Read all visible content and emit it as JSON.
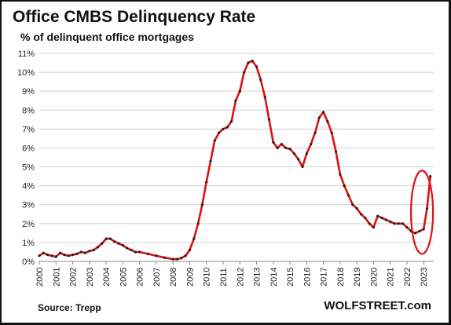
{
  "header": {
    "title": "Office CMBS Delinquency Rate",
    "subtitle": "% of delinquent office mortgages"
  },
  "footer": {
    "source": "Source: Trepp",
    "brand": "WOLFSTREET.com"
  },
  "colors": {
    "line": "#e01010",
    "markers": "#222222",
    "grid": "#d0d0d0",
    "highlight_ellipse": "#e01010"
  },
  "chart_data": {
    "type": "line",
    "title": "Office CMBS Delinquency Rate",
    "subtitle": "% of delinquent office mortgages",
    "xlabel": "",
    "ylabel": "",
    "xlim": [
      2000,
      2023.6
    ],
    "ylim": [
      0,
      11
    ],
    "y_ticks": [
      "0%",
      "1%",
      "2%",
      "3%",
      "4%",
      "5%",
      "6%",
      "7%",
      "8%",
      "9%",
      "10%",
      "11%"
    ],
    "x_ticks": [
      "2000",
      "2001",
      "2002",
      "2003",
      "2004",
      "2005",
      "2006",
      "2007",
      "2008",
      "2009",
      "2010",
      "2011",
      "2012",
      "2013",
      "2014",
      "2015",
      "2016",
      "2017",
      "2018",
      "2019",
      "2020",
      "2021",
      "2022",
      "2023"
    ],
    "grid": "horizontal",
    "legend": "none",
    "annotation": "ellipse around 2023 spike",
    "series": [
      {
        "x": [
          2000.0,
          2000.25,
          2000.5,
          2000.75,
          2001.0,
          2001.25,
          2001.5,
          2001.75,
          2002.0,
          2002.25,
          2002.5,
          2002.75,
          2003.0,
          2003.25,
          2003.5,
          2003.75,
          2004.0,
          2004.25,
          2004.5,
          2004.75,
          2005.0,
          2005.25,
          2005.5,
          2005.75,
          2006.0,
          2006.5,
          2007.0,
          2007.5,
          2008.0,
          2008.25,
          2008.5,
          2008.75,
          2009.0,
          2009.25,
          2009.5,
          2009.75,
          2010.0,
          2010.25,
          2010.5,
          2010.75,
          2011.0,
          2011.25,
          2011.5,
          2011.75,
          2012.0,
          2012.25,
          2012.5,
          2012.75,
          2013.0,
          2013.25,
          2013.5,
          2013.75,
          2014.0,
          2014.25,
          2014.5,
          2014.75,
          2015.0,
          2015.25,
          2015.5,
          2015.75,
          2016.0,
          2016.25,
          2016.5,
          2016.75,
          2017.0,
          2017.25,
          2017.5,
          2017.75,
          2018.0,
          2018.25,
          2018.5,
          2018.75,
          2019.0,
          2019.25,
          2019.5,
          2019.75,
          2020.0,
          2020.25,
          2020.5,
          2020.75,
          2021.0,
          2021.25,
          2021.5,
          2021.75,
          2022.0,
          2022.25,
          2022.5,
          2022.75,
          2023.0,
          2023.2,
          2023.4
        ],
        "y": [
          0.3,
          0.45,
          0.35,
          0.3,
          0.25,
          0.45,
          0.35,
          0.3,
          0.35,
          0.4,
          0.5,
          0.45,
          0.55,
          0.6,
          0.75,
          0.95,
          1.2,
          1.2,
          1.05,
          0.95,
          0.85,
          0.7,
          0.6,
          0.5,
          0.5,
          0.4,
          0.3,
          0.2,
          0.12,
          0.12,
          0.18,
          0.3,
          0.6,
          1.2,
          2.0,
          3.0,
          4.2,
          5.3,
          6.4,
          6.8,
          7.0,
          7.1,
          7.4,
          8.5,
          9.0,
          10.0,
          10.5,
          10.6,
          10.3,
          9.6,
          8.7,
          7.5,
          6.3,
          6.0,
          6.2,
          6.0,
          5.95,
          5.7,
          5.4,
          5.0,
          5.7,
          6.2,
          6.8,
          7.6,
          7.9,
          7.4,
          6.8,
          5.8,
          4.6,
          4.0,
          3.5,
          3.0,
          2.8,
          2.5,
          2.3,
          2.0,
          1.8,
          2.4,
          2.3,
          2.2,
          2.1,
          2.0,
          2.0,
          2.0,
          1.8,
          1.6,
          1.5,
          1.6,
          1.7,
          2.8,
          4.5
        ]
      }
    ]
  }
}
